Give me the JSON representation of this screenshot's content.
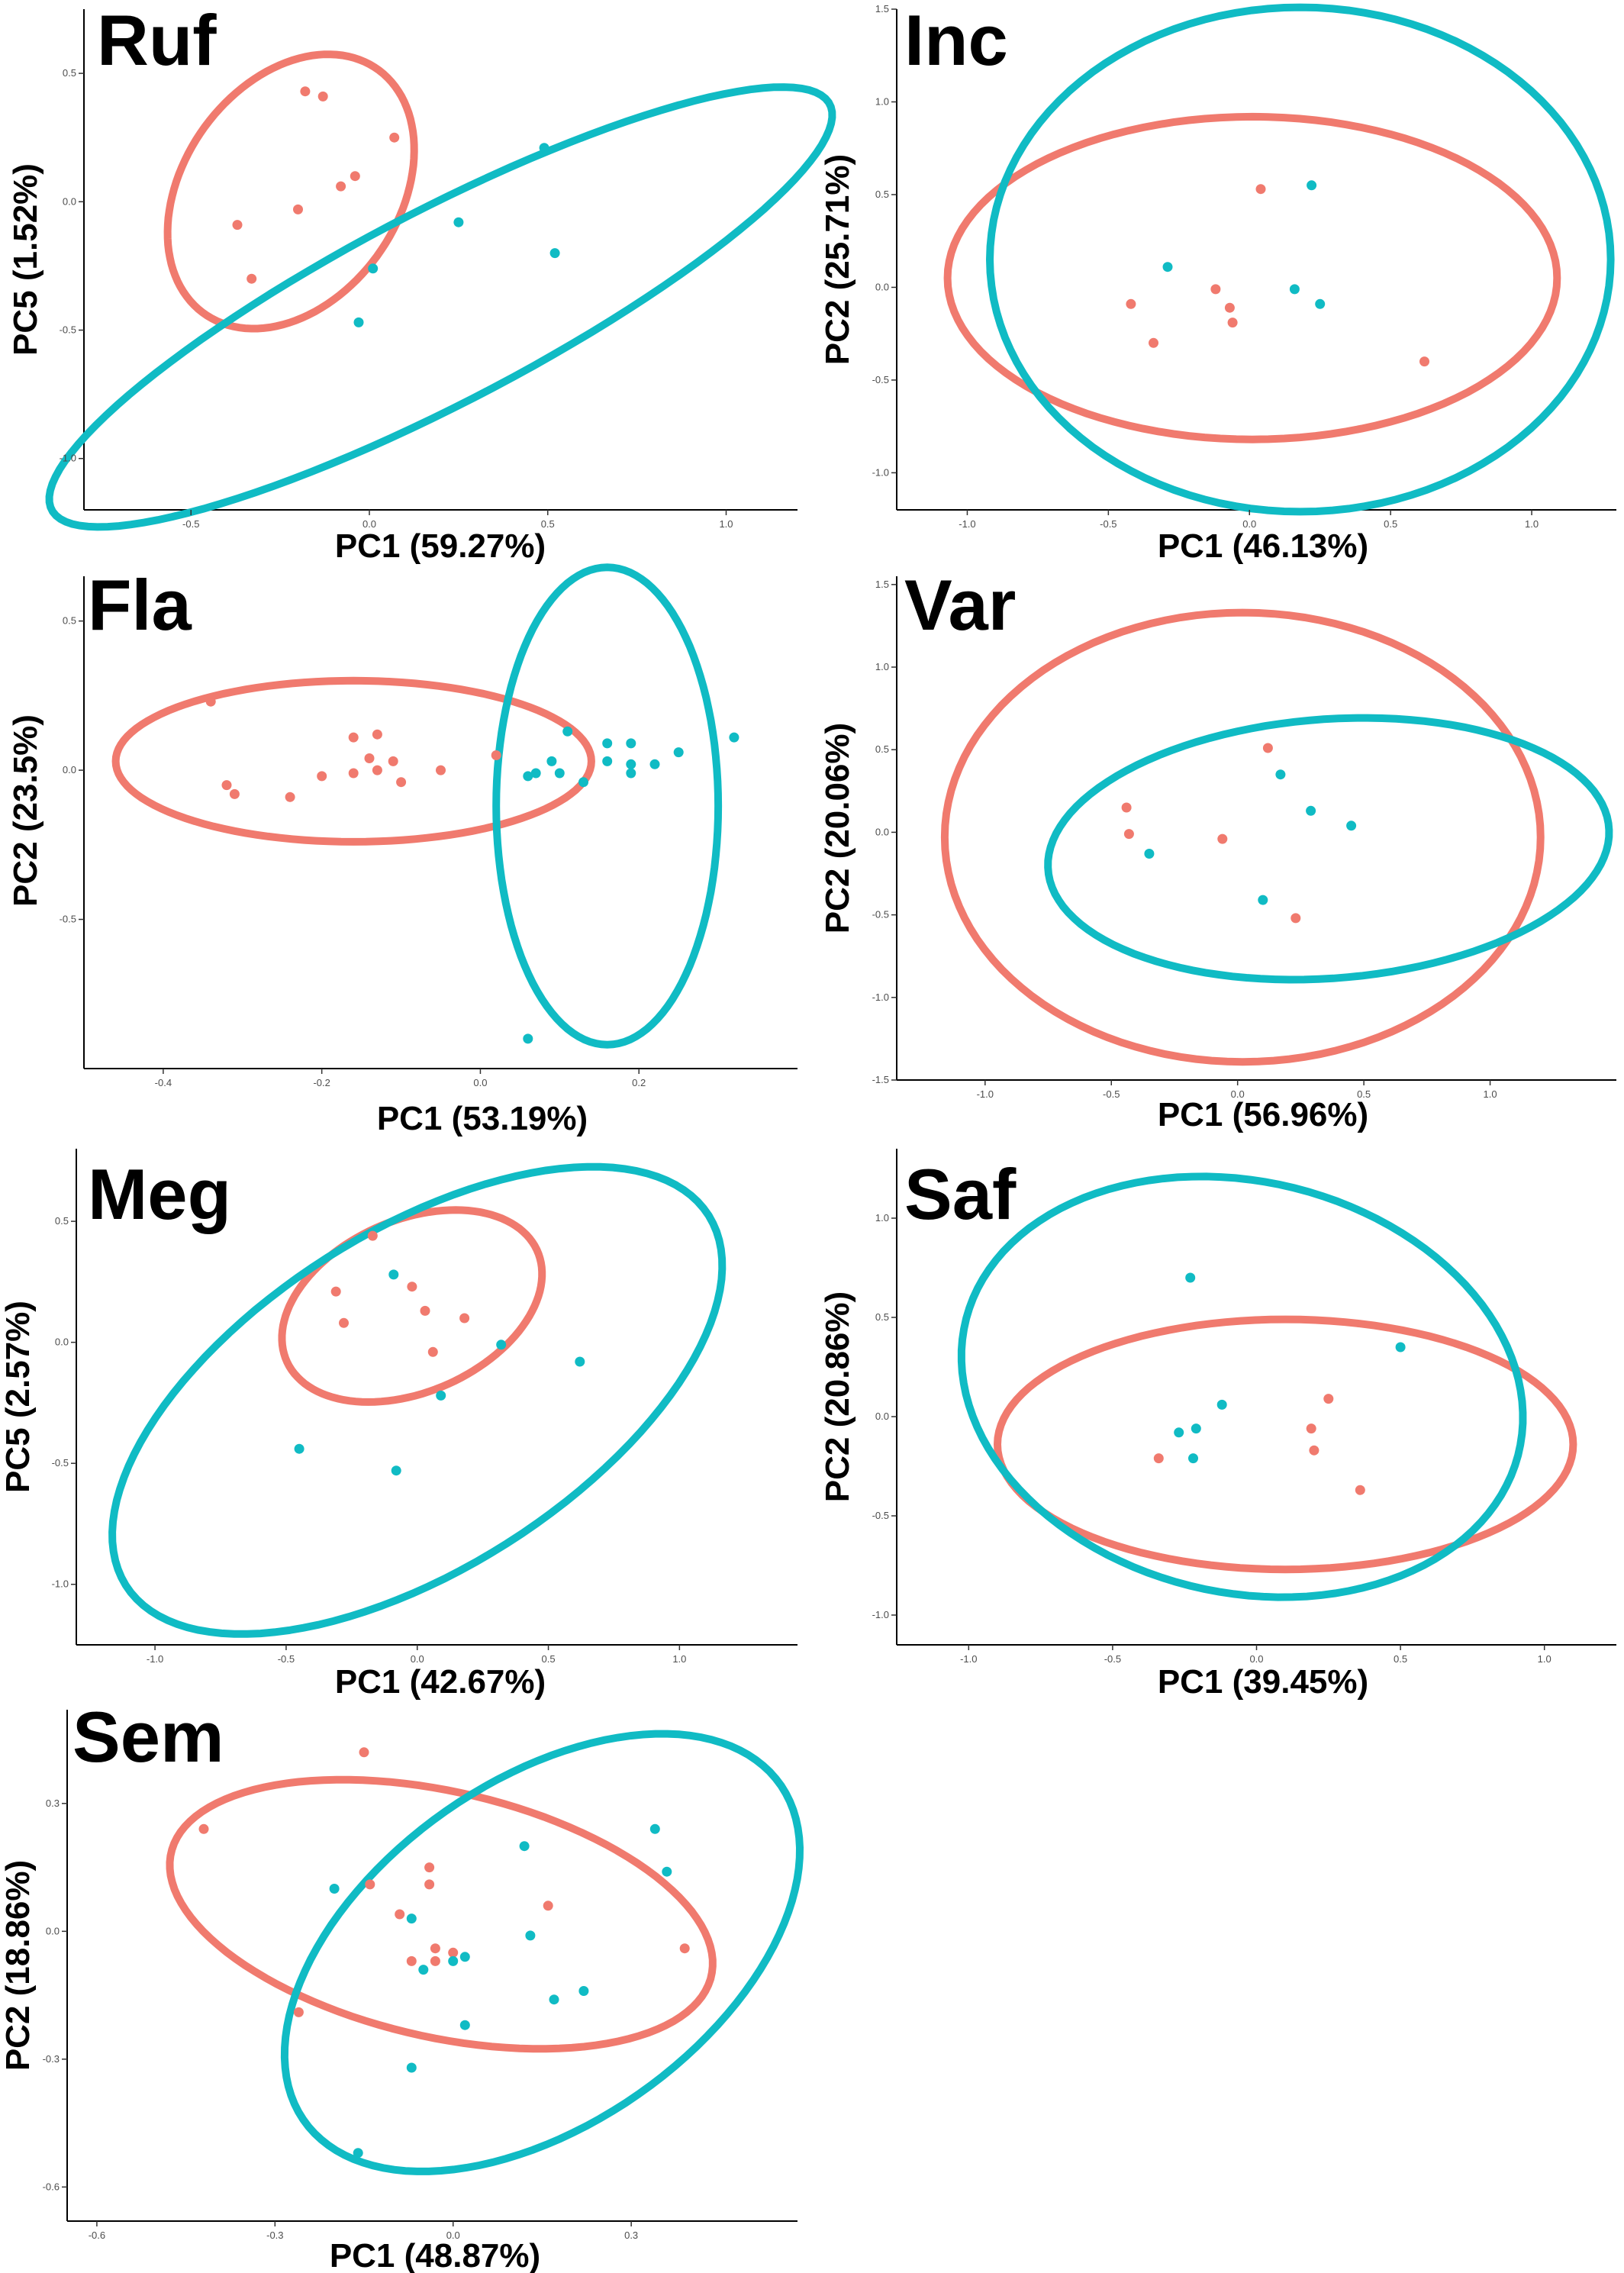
{
  "colors": {
    "group_a": "#F07A6E",
    "group_b": "#10BBC4"
  },
  "chart_data": [
    {
      "type": "scatter",
      "title": "Ruf",
      "xlabel": "PC1 (59.27%)",
      "ylabel": "PC5 (1.52%)",
      "xlim": [
        -0.8,
        1.2
      ],
      "ylim": [
        -1.2,
        0.75
      ],
      "xticks": [
        -0.5,
        0.0,
        0.5,
        1.0
      ],
      "yticks": [
        -1.0,
        -0.5,
        0.0,
        0.5
      ],
      "xtick_labels": [
        "-0.5",
        "0.0",
        "0.5",
        "1.0"
      ],
      "ytick_labels": [
        "-1.0",
        "-0.5",
        "0.0",
        "0.5"
      ],
      "grid": false,
      "series": [
        {
          "color": "group_a",
          "points": [
            [
              -0.18,
              0.43
            ],
            [
              -0.13,
              0.41
            ],
            [
              0.07,
              0.25
            ],
            [
              -0.04,
              0.1
            ],
            [
              -0.08,
              0.06
            ],
            [
              -0.2,
              -0.03
            ],
            [
              -0.37,
              -0.09
            ],
            [
              -0.33,
              -0.3
            ]
          ],
          "ellipse": {
            "center": [
              -0.22,
              0.04
            ],
            "semi_axes": [
              0.55,
              0.32
            ],
            "angle_deg": 73
          }
        },
        {
          "color": "group_b",
          "points": [
            [
              0.49,
              0.21
            ],
            [
              0.25,
              -0.08
            ],
            [
              0.52,
              -0.2
            ],
            [
              0.01,
              -0.26
            ],
            [
              -0.03,
              -0.47
            ]
          ],
          "ellipse": {
            "center": [
              0.2,
              -0.41
            ],
            "semi_axes": [
              1.35,
              0.34
            ],
            "angle_deg": 37
          }
        }
      ]
    },
    {
      "type": "scatter",
      "title": "Inc",
      "xlabel": "PC1 (46.13%)",
      "ylabel": "PC2 (25.71%)",
      "xlim": [
        -1.25,
        1.3
      ],
      "ylim": [
        -1.2,
        1.5
      ],
      "xticks": [
        -1.0,
        -0.5,
        0.0,
        0.5,
        1.0
      ],
      "yticks": [
        -1.0,
        -0.5,
        0.0,
        0.5,
        1.0,
        1.5
      ],
      "xtick_labels": [
        "-1.0",
        "-0.5",
        "0.0",
        "0.5",
        "1.0"
      ],
      "ytick_labels": [
        "-1.0",
        "-0.5",
        "0.0",
        "0.5",
        "1.0",
        "1.5"
      ],
      "grid": false,
      "series": [
        {
          "color": "group_a",
          "points": [
            [
              0.04,
              0.53
            ],
            [
              -0.42,
              -0.09
            ],
            [
              -0.34,
              -0.3
            ],
            [
              -0.12,
              -0.01
            ],
            [
              -0.07,
              -0.11
            ],
            [
              -0.06,
              -0.19
            ],
            [
              0.62,
              -0.4
            ]
          ],
          "ellipse": {
            "center": [
              0.01,
              0.05
            ],
            "semi_axes": [
              1.08,
              0.87
            ],
            "angle_deg": 0
          }
        },
        {
          "color": "group_b",
          "points": [
            [
              0.22,
              0.55
            ],
            [
              -0.29,
              0.11
            ],
            [
              0.16,
              -0.01
            ],
            [
              0.25,
              -0.09
            ]
          ],
          "ellipse": {
            "center": [
              0.18,
              0.15
            ],
            "semi_axes": [
              1.1,
              1.36
            ],
            "angle_deg": 0
          }
        }
      ]
    },
    {
      "type": "scatter",
      "title": "Fla",
      "xlabel": "PC1 (53.19%)",
      "ylabel": "PC2 (23.5%)",
      "xlim": [
        -0.5,
        0.4
      ],
      "ylim": [
        -1.0,
        0.65
      ],
      "xticks": [
        -0.4,
        -0.2,
        0.0,
        0.2
      ],
      "yticks": [
        -0.5,
        0.0,
        0.5
      ],
      "xtick_labels": [
        "-0.4",
        "-0.2",
        "0.0",
        "0.2"
      ],
      "ytick_labels": [
        "-0.5",
        "0.0",
        "0.5"
      ],
      "grid": false,
      "series": [
        {
          "color": "group_a",
          "points": [
            [
              -0.34,
              0.23
            ],
            [
              -0.32,
              -0.05
            ],
            [
              -0.31,
              -0.08
            ],
            [
              -0.24,
              -0.09
            ],
            [
              -0.2,
              -0.02
            ],
            [
              -0.16,
              0.11
            ],
            [
              -0.14,
              0.04
            ],
            [
              -0.13,
              0.12
            ],
            [
              -0.16,
              -0.01
            ],
            [
              -0.13,
              0.0
            ],
            [
              -0.11,
              0.03
            ],
            [
              -0.1,
              -0.04
            ],
            [
              -0.05,
              0.0
            ],
            [
              0.02,
              0.05
            ]
          ],
          "ellipse": {
            "center": [
              -0.16,
              0.03
            ],
            "semi_axes": [
              0.3,
              0.27
            ],
            "angle_deg": 0
          }
        },
        {
          "color": "group_b",
          "points": [
            [
              0.06,
              -0.02
            ],
            [
              0.07,
              -0.01
            ],
            [
              0.09,
              0.03
            ],
            [
              0.1,
              -0.01
            ],
            [
              0.11,
              0.13
            ],
            [
              0.13,
              -0.04
            ],
            [
              0.16,
              0.09
            ],
            [
              0.19,
              0.09
            ],
            [
              0.19,
              0.02
            ],
            [
              0.16,
              0.03
            ],
            [
              0.19,
              -0.01
            ],
            [
              0.22,
              0.02
            ],
            [
              0.25,
              0.06
            ],
            [
              0.32,
              0.11
            ],
            [
              0.06,
              -0.9
            ]
          ],
          "ellipse": {
            "center": [
              0.16,
              -0.12
            ],
            "semi_axes": [
              0.14,
              0.8
            ],
            "angle_deg": 0
          }
        }
      ]
    },
    {
      "type": "scatter",
      "title": "Var",
      "xlabel": "PC1 (56.96%)",
      "ylabel": "PC2 (20.06%)",
      "xlim": [
        -1.35,
        1.5
      ],
      "ylim": [
        -1.5,
        1.55
      ],
      "xticks": [
        -1.0,
        -0.5,
        0.0,
        0.5,
        1.0
      ],
      "yticks": [
        -1.5,
        -1.0,
        -0.5,
        0.0,
        0.5,
        1.0,
        1.5
      ],
      "xtick_labels": [
        "-1.0",
        "-0.5",
        "0.0",
        "0.5",
        "1.0"
      ],
      "ytick_labels": [
        "-1.5",
        "-1.0",
        "-0.5",
        "0.0",
        "0.5",
        "1.0",
        "1.5"
      ],
      "grid": false,
      "series": [
        {
          "color": "group_a",
          "points": [
            [
              0.12,
              0.51
            ],
            [
              -0.44,
              0.15
            ],
            [
              -0.43,
              -0.01
            ],
            [
              -0.06,
              -0.04
            ],
            [
              0.23,
              -0.52
            ]
          ],
          "ellipse": {
            "center": [
              0.02,
              -0.03
            ],
            "semi_axes": [
              1.18,
              1.36
            ],
            "angle_deg": 0
          }
        },
        {
          "color": "group_b",
          "points": [
            [
              0.17,
              0.35
            ],
            [
              0.29,
              0.13
            ],
            [
              0.45,
              0.04
            ],
            [
              -0.35,
              -0.13
            ],
            [
              0.1,
              -0.41
            ]
          ],
          "ellipse": {
            "center": [
              0.36,
              -0.1
            ],
            "semi_axes": [
              1.12,
              0.78
            ],
            "angle_deg": 10
          }
        }
      ]
    },
    {
      "type": "scatter",
      "title": "Meg",
      "xlabel": "PC1 (42.67%)",
      "ylabel": "PC5 (2.57%)",
      "xlim": [
        -1.3,
        1.45
      ],
      "ylim": [
        -1.25,
        0.8
      ],
      "xticks": [
        -1.0,
        -0.5,
        0.0,
        0.5,
        1.0
      ],
      "yticks": [
        -1.0,
        -0.5,
        0.0,
        0.5
      ],
      "xtick_labels": [
        "-1.0",
        "-0.5",
        "0.0",
        "0.5",
        "1.0"
      ],
      "ytick_labels": [
        "-1.0",
        "-0.5",
        "0.0",
        "0.5"
      ],
      "grid": false,
      "series": [
        {
          "color": "group_a",
          "points": [
            [
              -0.17,
              0.44
            ],
            [
              -0.31,
              0.21
            ],
            [
              -0.02,
              0.23
            ],
            [
              -0.28,
              0.08
            ],
            [
              0.18,
              0.1
            ],
            [
              0.06,
              -0.04
            ],
            [
              0.03,
              0.13
            ]
          ],
          "ellipse": {
            "center": [
              -0.02,
              0.15
            ],
            "semi_axes": [
              0.53,
              0.35
            ],
            "angle_deg": 28
          }
        },
        {
          "color": "group_b",
          "points": [
            [
              -0.09,
              0.28
            ],
            [
              0.32,
              -0.01
            ],
            [
              0.62,
              -0.08
            ],
            [
              0.09,
              -0.22
            ],
            [
              -0.45,
              -0.44
            ],
            [
              -0.08,
              -0.53
            ]
          ],
          "ellipse": {
            "center": [
              0.0,
              -0.24
            ],
            "semi_axes": [
              1.35,
              0.68
            ],
            "angle_deg": 36
          }
        }
      ]
    },
    {
      "type": "scatter",
      "title": "Saf",
      "xlabel": "PC1 (39.45%)",
      "ylabel": "PC2 (20.86%)",
      "xlim": [
        -1.25,
        1.25
      ],
      "ylim": [
        -1.15,
        1.35
      ],
      "xticks": [
        -1.0,
        -0.5,
        0.0,
        0.5,
        1.0
      ],
      "yticks": [
        -1.0,
        -0.5,
        0.0,
        0.5,
        1.0
      ],
      "xtick_labels": [
        "-1.0",
        "-0.5",
        "0.0",
        "0.5",
        "1.0"
      ],
      "ytick_labels": [
        "-1.0",
        "-0.5",
        "0.0",
        "0.5",
        "1.0"
      ],
      "grid": false,
      "series": [
        {
          "color": "group_a",
          "points": [
            [
              0.25,
              0.09
            ],
            [
              0.19,
              -0.06
            ],
            [
              0.2,
              -0.17
            ],
            [
              -0.34,
              -0.21
            ],
            [
              0.36,
              -0.37
            ]
          ],
          "ellipse": {
            "center": [
              0.1,
              -0.14
            ],
            "semi_axes": [
              1.0,
              0.63
            ],
            "angle_deg": 0
          }
        },
        {
          "color": "group_b",
          "points": [
            [
              -0.23,
              0.7
            ],
            [
              0.5,
              0.35
            ],
            [
              -0.12,
              0.06
            ],
            [
              -0.21,
              -0.06
            ],
            [
              -0.27,
              -0.08
            ],
            [
              -0.22,
              -0.21
            ]
          ],
          "ellipse": {
            "center": [
              -0.05,
              0.15
            ],
            "semi_axes": [
              0.93,
              1.1
            ],
            "angle_deg": 30
          }
        }
      ]
    },
    {
      "type": "scatter",
      "title": "Sem",
      "xlabel": "PC1 (48.87%)",
      "ylabel": "PC2 (18.86%)",
      "xlim": [
        -0.65,
        0.58
      ],
      "ylim": [
        -0.68,
        0.52
      ],
      "xticks": [
        -0.6,
        -0.3,
        0.0,
        0.3
      ],
      "yticks": [
        -0.6,
        -0.3,
        0.0,
        0.3
      ],
      "xtick_labels": [
        "-0.6",
        "-0.3",
        "0.0",
        "0.3"
      ],
      "ytick_labels": [
        "-0.6",
        "-0.3",
        "0.0",
        "0.3"
      ],
      "grid": false,
      "series": [
        {
          "color": "group_a",
          "points": [
            [
              -0.42,
              0.24
            ],
            [
              -0.15,
              0.42
            ],
            [
              -0.14,
              0.11
            ],
            [
              -0.04,
              0.15
            ],
            [
              -0.04,
              0.11
            ],
            [
              -0.09,
              0.04
            ],
            [
              -0.03,
              -0.04
            ],
            [
              -0.07,
              -0.07
            ],
            [
              -0.03,
              -0.07
            ],
            [
              0.0,
              -0.05
            ],
            [
              0.16,
              0.06
            ],
            [
              0.39,
              -0.04
            ],
            [
              -0.26,
              -0.19
            ]
          ],
          "ellipse": {
            "center": [
              -0.02,
              0.04
            ],
            "semi_axes": [
              0.48,
              0.28
            ],
            "angle_deg": -22
          }
        },
        {
          "color": "group_b",
          "points": [
            [
              -0.2,
              0.1
            ],
            [
              -0.07,
              0.03
            ],
            [
              -0.05,
              -0.09
            ],
            [
              0.0,
              -0.07
            ],
            [
              0.02,
              -0.06
            ],
            [
              0.12,
              0.2
            ],
            [
              0.13,
              -0.01
            ],
            [
              0.34,
              0.24
            ],
            [
              0.36,
              0.14
            ],
            [
              0.17,
              -0.16
            ],
            [
              0.22,
              -0.14
            ],
            [
              0.02,
              -0.22
            ],
            [
              -0.07,
              -0.32
            ],
            [
              -0.16,
              -0.52
            ]
          ],
          "ellipse": {
            "center": [
              0.15,
              -0.05
            ],
            "semi_axes": [
              0.58,
              0.34
            ],
            "angle_deg": 55
          }
        }
      ]
    }
  ]
}
